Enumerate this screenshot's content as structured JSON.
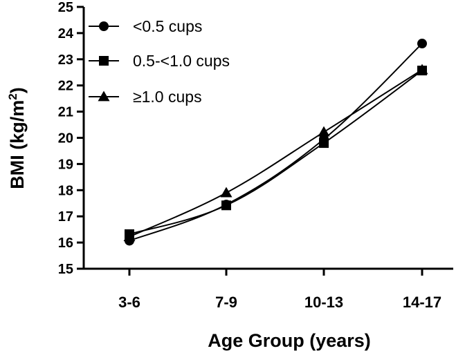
{
  "chart_data": {
    "type": "line",
    "title": "",
    "xlabel": "Age Group (years)",
    "ylabel_main": "BMI (kg/m",
    "ylabel_sup": "2",
    "ylabel_close": ")",
    "categories": [
      "3-6",
      "7-9",
      "10-13",
      "14-17"
    ],
    "ylim": [
      15,
      25
    ],
    "yticks": [
      "15",
      "16",
      "17",
      "18",
      "19",
      "20",
      "21",
      "22",
      "23",
      "24",
      "25"
    ],
    "grid": false,
    "legend_position": "top-left",
    "series": [
      {
        "name": "<0.5 cups",
        "marker": "circle",
        "values": [
          16.07,
          17.45,
          19.95,
          23.6
        ]
      },
      {
        "name": "0.5-<1.0 cups",
        "marker": "square",
        "values": [
          16.32,
          17.42,
          19.8,
          22.57
        ]
      },
      {
        "name": "≥1.0 cups",
        "marker": "triangle",
        "values": [
          16.22,
          17.9,
          20.22,
          22.6
        ]
      }
    ],
    "colors": {
      "line": "#000000",
      "marker": "#000000"
    }
  }
}
